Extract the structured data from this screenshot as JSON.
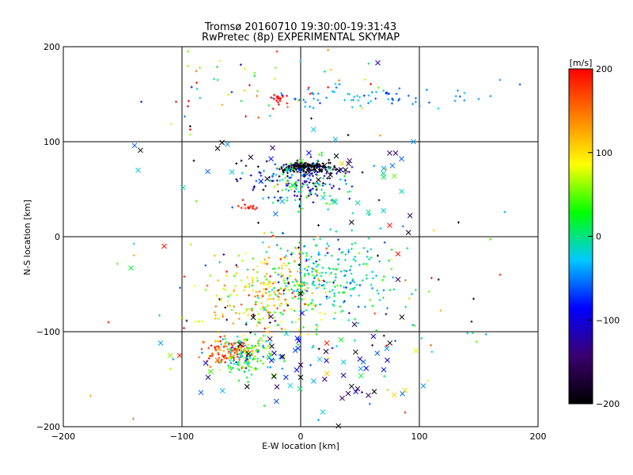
{
  "chart_data": {
    "type": "scatter",
    "title": "Tromsø 20160710 19:30:00-19:31:43",
    "subtitle": "RwPretec (8p) EXPERIMENTAL SKYMAP",
    "xlabel": "E-W location [km]",
    "ylabel": "N-S location [km]",
    "xlim": [
      -200,
      200
    ],
    "ylim": [
      -200,
      200
    ],
    "x_ticks": [
      -200,
      -100,
      0,
      100,
      200
    ],
    "y_ticks": [
      -200,
      -100,
      0,
      100,
      200
    ],
    "grid": true,
    "marker_styles": [
      "cross",
      "x"
    ],
    "colorbar": {
      "label": "[m/s]",
      "range": [
        -200,
        200
      ],
      "ticks": [
        -200,
        -100,
        0,
        100,
        200
      ],
      "colors": [
        "#000000",
        "#3a0070",
        "#0000ff",
        "#00c8ff",
        "#00ff00",
        "#ffff00",
        "#ff8000",
        "#ff0000"
      ],
      "placement": "right"
    },
    "clusters": [
      {
        "name": "black core",
        "center": [
          5,
          73
        ],
        "spread": [
          12,
          3
        ],
        "count": 160,
        "value": -200,
        "value_spread": 10,
        "marker": "cross"
      },
      {
        "name": "cyan north arc",
        "center": [
          45,
          146
        ],
        "spread": [
          45,
          6
        ],
        "count": 70,
        "value": -45,
        "value_spread": 15,
        "marker": "cross"
      },
      {
        "name": "north-west red patch",
        "center": [
          -18,
          145
        ],
        "spread": [
          4,
          4
        ],
        "count": 18,
        "value": 195,
        "value_spread": 5,
        "marker": "cross"
      },
      {
        "name": "upper scattered",
        "center": [
          -20,
          160
        ],
        "spread": [
          50,
          25
        ],
        "count": 45,
        "value": 60,
        "value_spread": 120,
        "marker": "cross"
      },
      {
        "name": "mid-north mixed",
        "center": [
          2,
          57
        ],
        "spread": [
          22,
          12
        ],
        "count": 200,
        "value": -60,
        "value_spread": 70,
        "marker": "cross"
      },
      {
        "name": "mid-north crosses",
        "center": [
          20,
          62
        ],
        "spread": [
          45,
          22
        ],
        "count": 40,
        "value": -80,
        "value_spread": 90,
        "marker": "x"
      },
      {
        "name": "red spot",
        "center": [
          -45,
          31
        ],
        "spread": [
          3,
          1.5
        ],
        "count": 14,
        "value": 190,
        "value_spread": 8,
        "marker": "cross"
      },
      {
        "name": "southern cloud",
        "center": [
          25,
          -40
        ],
        "spread": [
          28,
          22
        ],
        "count": 240,
        "value": -15,
        "value_spread": 35,
        "marker": "cross"
      },
      {
        "name": "south-west yellow",
        "center": [
          -30,
          -60
        ],
        "spread": [
          22,
          24
        ],
        "count": 230,
        "value": 100,
        "value_spread": 45,
        "marker": "cross"
      },
      {
        "name": "south-west red cluster",
        "center": [
          -60,
          -122
        ],
        "spread": [
          12,
          7
        ],
        "count": 110,
        "value": 170,
        "value_spread": 35,
        "marker": "cross"
      },
      {
        "name": "south-west green cluster",
        "center": [
          -45,
          -125
        ],
        "spread": [
          12,
          10
        ],
        "count": 130,
        "value": 15,
        "value_spread": 40,
        "marker": "cross"
      },
      {
        "name": "southern crosses",
        "center": [
          10,
          -130
        ],
        "spread": [
          45,
          25
        ],
        "count": 55,
        "value": -90,
        "value_spread": 90,
        "marker": "x"
      },
      {
        "name": "southern scattered",
        "center": [
          10,
          -80
        ],
        "spread": [
          70,
          45
        ],
        "count": 120,
        "value": 20,
        "value_spread": 110,
        "marker": "cross"
      },
      {
        "name": "far scattered",
        "center": [
          0,
          0
        ],
        "spread": [
          110,
          110
        ],
        "count": 40,
        "value": 0,
        "value_spread": 150,
        "marker": "cross"
      }
    ],
    "points": [
      {
        "x": -140,
        "y": 96,
        "v": -60,
        "m": "x"
      },
      {
        "x": -135,
        "y": 91,
        "v": -200,
        "m": "x"
      },
      {
        "x": -137,
        "y": 70,
        "v": -20,
        "m": "x"
      },
      {
        "x": -143,
        "y": -33,
        "v": 20,
        "m": "x"
      },
      {
        "x": -115,
        "y": -10,
        "v": 190,
        "m": "x"
      },
      {
        "x": -98,
        "y": -42,
        "v": 190,
        "m": "cross"
      },
      {
        "x": -162,
        "y": -90,
        "v": 190,
        "m": "cross"
      },
      {
        "x": -118,
        "y": -112,
        "v": -40,
        "m": "x"
      },
      {
        "x": -110,
        "y": -125,
        "v": 60,
        "m": "x"
      },
      {
        "x": -102,
        "y": -125,
        "v": 190,
        "m": "x"
      },
      {
        "x": -84,
        "y": -164,
        "v": -60,
        "m": "x"
      },
      {
        "x": -78,
        "y": -148,
        "v": -120,
        "m": "x"
      },
      {
        "x": -76,
        "y": -142,
        "v": 40,
        "m": "x"
      },
      {
        "x": -80,
        "y": -133,
        "v": -80,
        "m": "x"
      },
      {
        "x": -70,
        "y": -130,
        "v": 160,
        "m": "x"
      },
      {
        "x": 65,
        "y": 183,
        "v": -110,
        "m": "x"
      },
      {
        "x": 75,
        "y": 88,
        "v": -140,
        "m": "x"
      },
      {
        "x": 80,
        "y": 88,
        "v": -140,
        "m": "x"
      },
      {
        "x": 85,
        "y": 82,
        "v": -60,
        "m": "x"
      },
      {
        "x": 70,
        "y": 72,
        "v": -40,
        "m": "x"
      },
      {
        "x": 95,
        "y": 100,
        "v": -40,
        "m": "x"
      },
      {
        "x": 75,
        "y": 12,
        "v": 190,
        "m": "x"
      },
      {
        "x": 82,
        "y": -45,
        "v": -150,
        "m": "x"
      },
      {
        "x": 82,
        "y": -18,
        "v": 190,
        "m": "x"
      },
      {
        "x": 97,
        "y": -120,
        "v": 80,
        "m": "x"
      },
      {
        "x": 73,
        "y": -130,
        "v": -90,
        "m": "x"
      },
      {
        "x": 70,
        "y": -140,
        "v": -80,
        "m": "x"
      },
      {
        "x": 62,
        "y": -163,
        "v": -200,
        "m": "x"
      },
      {
        "x": 57,
        "y": -167,
        "v": -150,
        "m": "x"
      },
      {
        "x": 48,
        "y": -160,
        "v": -150,
        "m": "x"
      },
      {
        "x": 40,
        "y": -165,
        "v": -150,
        "m": "x"
      },
      {
        "x": 35,
        "y": -170,
        "v": -150,
        "m": "x"
      },
      {
        "x": 88,
        "y": -185,
        "v": 190,
        "m": "cross"
      },
      {
        "x": 22,
        "y": -112,
        "v": 190,
        "m": "x"
      },
      {
        "x": 0,
        "y": -148,
        "v": -200,
        "m": "x"
      },
      {
        "x": 0,
        "y": -135,
        "v": -150,
        "m": "x"
      },
      {
        "x": -20,
        "y": -158,
        "v": -150,
        "m": "x"
      },
      {
        "x": 15,
        "y": -193,
        "v": -40,
        "m": "cross"
      },
      {
        "x": 133,
        "y": 15,
        "v": -200,
        "m": "cross"
      },
      {
        "x": 172,
        "y": 26,
        "v": -40,
        "m": "cross"
      },
      {
        "x": 168,
        "y": -40,
        "v": 190,
        "m": "cross"
      },
      {
        "x": 168,
        "y": 165,
        "v": -40,
        "m": "cross"
      },
      {
        "x": 130,
        "y": 143,
        "v": -40,
        "m": "cross"
      },
      {
        "x": 150,
        "y": 145,
        "v": -40,
        "m": "cross"
      },
      {
        "x": 160,
        "y": 148,
        "v": -40,
        "m": "cross"
      },
      {
        "x": -85,
        "y": 178,
        "v": 60,
        "m": "cross"
      },
      {
        "x": -70,
        "y": 165,
        "v": 20,
        "m": "cross"
      },
      {
        "x": -105,
        "y": 142,
        "v": 190,
        "m": "cross"
      },
      {
        "x": 0,
        "y": 185,
        "v": -40,
        "m": "cross"
      },
      {
        "x": -20,
        "y": 195,
        "v": 190,
        "m": "cross"
      },
      {
        "x": 40,
        "y": 107,
        "v": -200,
        "m": "cross"
      },
      {
        "x": -70,
        "y": 93,
        "v": -200,
        "m": "x"
      },
      {
        "x": 30,
        "y": 85,
        "v": -200,
        "m": "x"
      },
      {
        "x": 20,
        "y": 75,
        "v": -200,
        "m": "x"
      },
      {
        "x": -50,
        "y": 80,
        "v": -200,
        "m": "cross"
      },
      {
        "x": -90,
        "y": 80,
        "v": -200,
        "m": "cross"
      },
      {
        "x": -25,
        "y": 82,
        "v": -80,
        "m": "x"
      },
      {
        "x": 25,
        "y": 65,
        "v": -200,
        "m": "x"
      },
      {
        "x": 15,
        "y": 60,
        "v": -200,
        "m": "x"
      },
      {
        "x": 15,
        "y": 12,
        "v": -200,
        "m": "cross"
      },
      {
        "x": 0,
        "y": -60,
        "v": -200,
        "m": "x"
      },
      {
        "x": -40,
        "y": -85,
        "v": -200,
        "m": "x"
      },
      {
        "x": 65,
        "y": -20,
        "v": -200,
        "m": "cross"
      }
    ]
  }
}
